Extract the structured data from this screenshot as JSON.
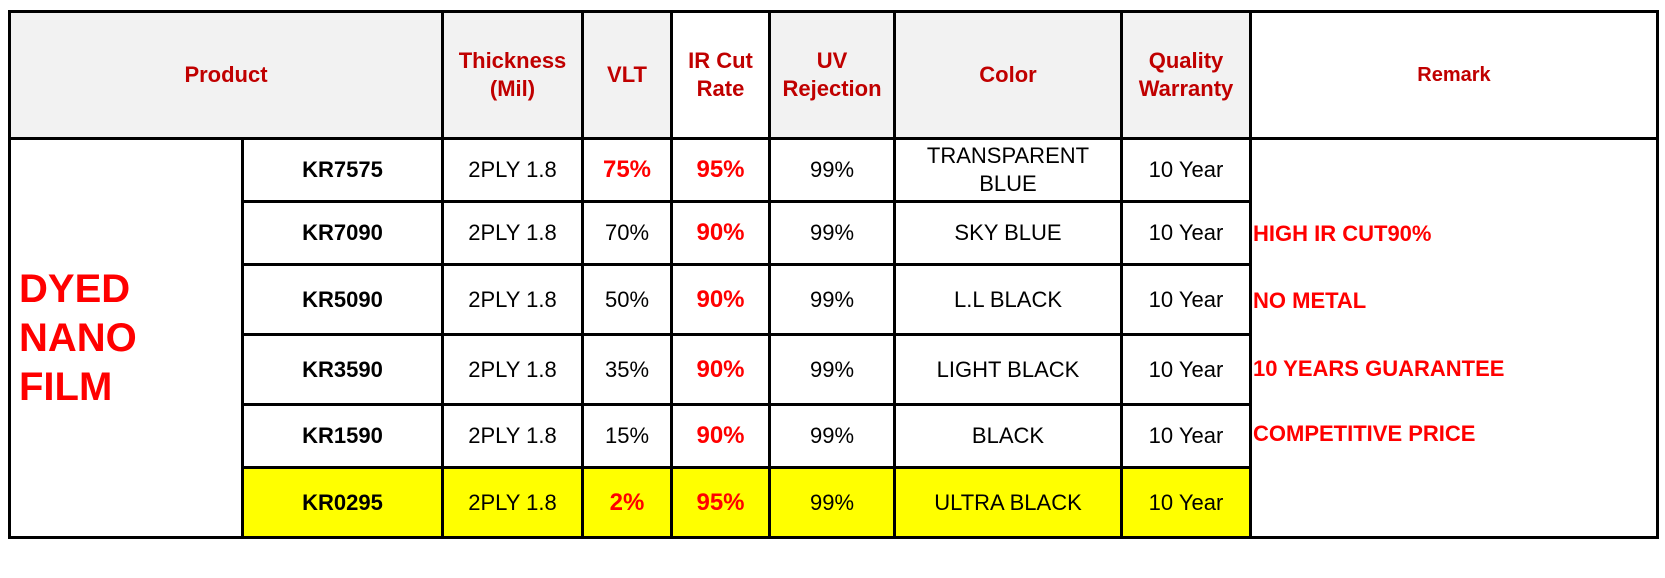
{
  "header": {
    "product": "Product",
    "thickness": "Thickness\n(Mil)",
    "vlt": "VLT",
    "ir_cut_rate": "IR Cut\nRate",
    "uv_rejection": "UV\nRejection",
    "color": "Color",
    "quality_warranty": "Quality\nWarranty",
    "remark": "Remark"
  },
  "category": "DYED\nNANO\nFILM",
  "rows": [
    {
      "code": "KR7575",
      "thickness": "2PLY 1.8",
      "vlt": "75%",
      "ir": "95%",
      "uv": "99%",
      "color": "TRANSPARENT\nBLUE",
      "warranty": "10 Year"
    },
    {
      "code": "KR7090",
      "thickness": "2PLY 1.8",
      "vlt": "70%",
      "ir": "90%",
      "uv": "99%",
      "color": "SKY BLUE",
      "warranty": "10 Year"
    },
    {
      "code": "KR5090",
      "thickness": "2PLY 1.8",
      "vlt": "50%",
      "ir": "90%",
      "uv": "99%",
      "color": "L.L BLACK",
      "warranty": "10 Year"
    },
    {
      "code": "KR3590",
      "thickness": "2PLY 1.8",
      "vlt": "35%",
      "ir": "90%",
      "uv": "99%",
      "color": "LIGHT BLACK",
      "warranty": "10 Year"
    },
    {
      "code": "KR1590",
      "thickness": "2PLY 1.8",
      "vlt": "15%",
      "ir": "90%",
      "uv": "99%",
      "color": "BLACK",
      "warranty": "10 Year"
    },
    {
      "code": "KR0295",
      "thickness": "2PLY 1.8",
      "vlt": "2%",
      "ir": "95%",
      "uv": "99%",
      "color": "ULTRA BLACK",
      "warranty": "10 Year"
    }
  ],
  "remarks": [
    "HIGH IR CUT90%",
    "NO METAL",
    "10 YEARS GUARANTEE",
    "COMPETITIVE PRICE"
  ],
  "colors": {
    "header_text": "#c00000",
    "highlight_text": "#ff0000",
    "highlight_row": "#ffff00",
    "header_bg": "#f2f2f2"
  }
}
